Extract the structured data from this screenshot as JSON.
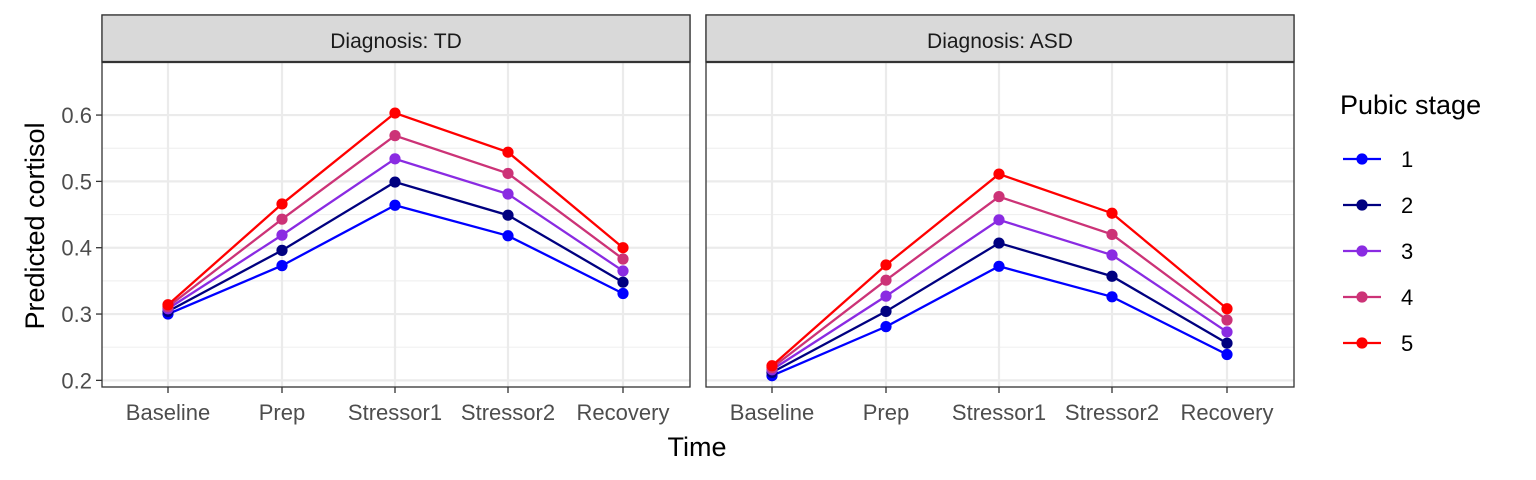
{
  "chart_data": {
    "type": "line",
    "facets": [
      "Diagnosis: TD",
      "Diagnosis: ASD"
    ],
    "categories": [
      "Baseline",
      "Prep",
      "Stressor1",
      "Stressor2",
      "Recovery"
    ],
    "xlabel": "Time",
    "ylabel": "Predicted cortisol",
    "ylim": [
      0.19,
      0.68
    ],
    "yticks": [
      "0.2",
      "0.3",
      "0.4",
      "0.5",
      "0.6"
    ],
    "grid": true,
    "legend": {
      "title": "Pubic stage",
      "position": "right"
    },
    "series": [
      {
        "name": "1",
        "color": "#0000FF",
        "values": {
          "Diagnosis: TD": [
            0.3,
            0.373,
            0.464,
            0.418,
            0.331
          ],
          "Diagnosis: ASD": [
            0.207,
            0.281,
            0.372,
            0.326,
            0.239
          ]
        }
      },
      {
        "name": "2",
        "color": "#000080",
        "values": {
          "Diagnosis: TD": [
            0.304,
            0.396,
            0.499,
            0.449,
            0.348
          ],
          "Diagnosis: ASD": [
            0.212,
            0.304,
            0.407,
            0.357,
            0.256
          ]
        }
      },
      {
        "name": "3",
        "color": "#8A2BE2",
        "values": {
          "Diagnosis: TD": [
            0.308,
            0.419,
            0.534,
            0.481,
            0.365
          ],
          "Diagnosis: ASD": [
            0.216,
            0.327,
            0.442,
            0.389,
            0.273
          ]
        }
      },
      {
        "name": "4",
        "color": "#CC3377",
        "values": {
          "Diagnosis: TD": [
            0.311,
            0.443,
            0.569,
            0.512,
            0.383
          ],
          "Diagnosis: ASD": [
            0.219,
            0.351,
            0.477,
            0.42,
            0.291
          ]
        }
      },
      {
        "name": "5",
        "color": "#FF0000",
        "values": {
          "Diagnosis: TD": [
            0.314,
            0.466,
            0.603,
            0.544,
            0.4
          ],
          "Diagnosis: ASD": [
            0.222,
            0.374,
            0.511,
            0.452,
            0.308
          ]
        }
      }
    ]
  }
}
